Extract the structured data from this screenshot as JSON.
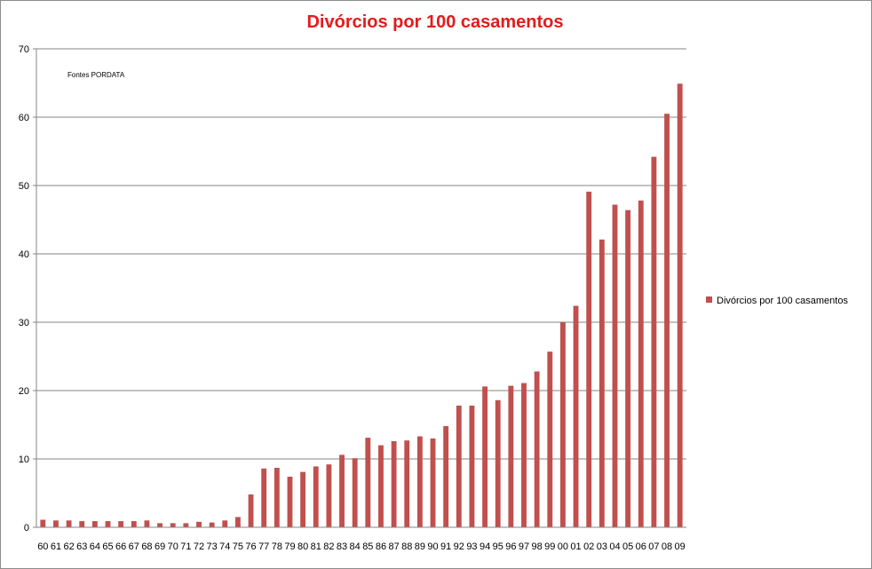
{
  "chart_data": {
    "type": "bar",
    "title": "Divórcios por 100 casamentos",
    "source_note": "Fontes PORDATA",
    "xlabel": "",
    "ylabel": "",
    "ylim": [
      0,
      70
    ],
    "yticks": [
      0,
      10,
      20,
      30,
      40,
      50,
      60,
      70
    ],
    "grid": true,
    "legend_position": "right",
    "colors": {
      "bar": "#c0504d",
      "title": "#e31b1b",
      "grid": "#868686",
      "axis": "#868686"
    },
    "categories": [
      "60",
      "61",
      "62",
      "63",
      "64",
      "65",
      "66",
      "67",
      "68",
      "69",
      "70",
      "71",
      "72",
      "73",
      "74",
      "75",
      "76",
      "77",
      "78",
      "79",
      "80",
      "81",
      "82",
      "83",
      "84",
      "85",
      "86",
      "87",
      "88",
      "89",
      "90",
      "91",
      "92",
      "93",
      "94",
      "95",
      "96",
      "97",
      "98",
      "99",
      "00",
      "01",
      "02",
      "03",
      "04",
      "05",
      "06",
      "07",
      "08",
      "09"
    ],
    "series": [
      {
        "name": "Divórcios por 100 casamentos",
        "values": [
          1.1,
          1.0,
          1.0,
          0.9,
          0.9,
          0.9,
          0.9,
          0.9,
          1.0,
          0.6,
          0.6,
          0.6,
          0.8,
          0.7,
          1.0,
          1.5,
          4.8,
          8.6,
          8.7,
          7.4,
          8.1,
          8.9,
          9.2,
          10.6,
          10.1,
          13.1,
          12.0,
          12.6,
          12.7,
          13.3,
          13.0,
          14.8,
          17.8,
          17.8,
          20.6,
          18.6,
          20.7,
          21.1,
          22.8,
          25.7,
          30.0,
          32.4,
          49.1,
          42.1,
          47.2,
          46.4,
          47.8,
          54.2,
          60.5,
          64.9
        ]
      }
    ]
  }
}
